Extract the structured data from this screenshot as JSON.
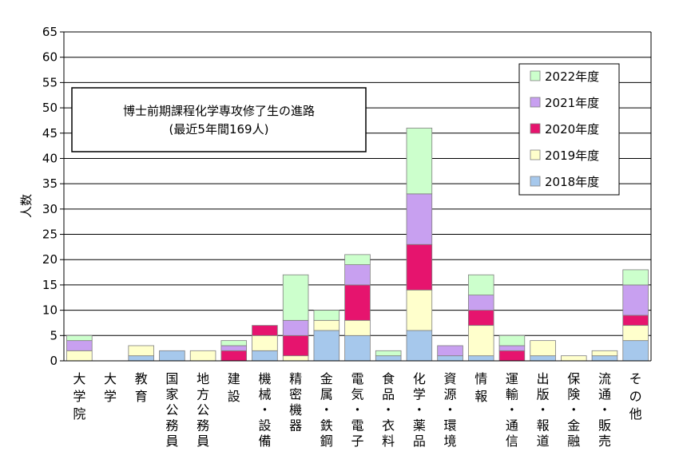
{
  "chart_data": {
    "type": "bar",
    "stacked": true,
    "title": "博士前期課程化学専攻修了生の進路",
    "subtitle": "(最近5年間169人)",
    "ylabel": "人数",
    "xlabel": "",
    "ylim": [
      0,
      65
    ],
    "yticks": [
      0,
      5,
      10,
      15,
      20,
      25,
      30,
      35,
      40,
      45,
      50,
      55,
      60,
      65
    ],
    "legend_position": "top-right",
    "categories": [
      "大学院",
      "大学",
      "教育",
      "国家公務員",
      "地方公務員",
      "建設",
      "機械・設備",
      "精密機器",
      "金属・鉄鋼",
      "電気・電子",
      "食品・衣料",
      "化学・薬品",
      "資源・環境",
      "情報",
      "運輸・通信",
      "出版・報道",
      "保険・金融",
      "流通・販売",
      "その他"
    ],
    "series": [
      {
        "name": "2018年度",
        "color": "#a6c8ec",
        "values": [
          0,
          0,
          1,
          2,
          0,
          0,
          2,
          0,
          6,
          5,
          1,
          6,
          1,
          1,
          0,
          1,
          0,
          1,
          4
        ]
      },
      {
        "name": "2019年度",
        "color": "#ffffcc",
        "values": [
          2,
          0,
          2,
          0,
          2,
          0,
          3,
          1,
          2,
          3,
          0,
          8,
          0,
          6,
          0,
          3,
          1,
          1,
          3
        ]
      },
      {
        "name": "2020年度",
        "color": "#e6146e",
        "values": [
          0,
          0,
          0,
          0,
          0,
          2,
          2,
          4,
          0,
          7,
          0,
          9,
          0,
          3,
          2,
          0,
          0,
          0,
          2
        ]
      },
      {
        "name": "2021年度",
        "color": "#c8a0f0",
        "values": [
          2,
          0,
          0,
          0,
          0,
          1,
          0,
          3,
          0,
          4,
          0,
          10,
          2,
          3,
          1,
          0,
          0,
          0,
          6
        ]
      },
      {
        "name": "2022年度",
        "color": "#ccffcc",
        "values": [
          1,
          0,
          0,
          0,
          0,
          1,
          0,
          9,
          2,
          2,
          1,
          13,
          0,
          4,
          2,
          0,
          0,
          0,
          3
        ]
      }
    ]
  }
}
